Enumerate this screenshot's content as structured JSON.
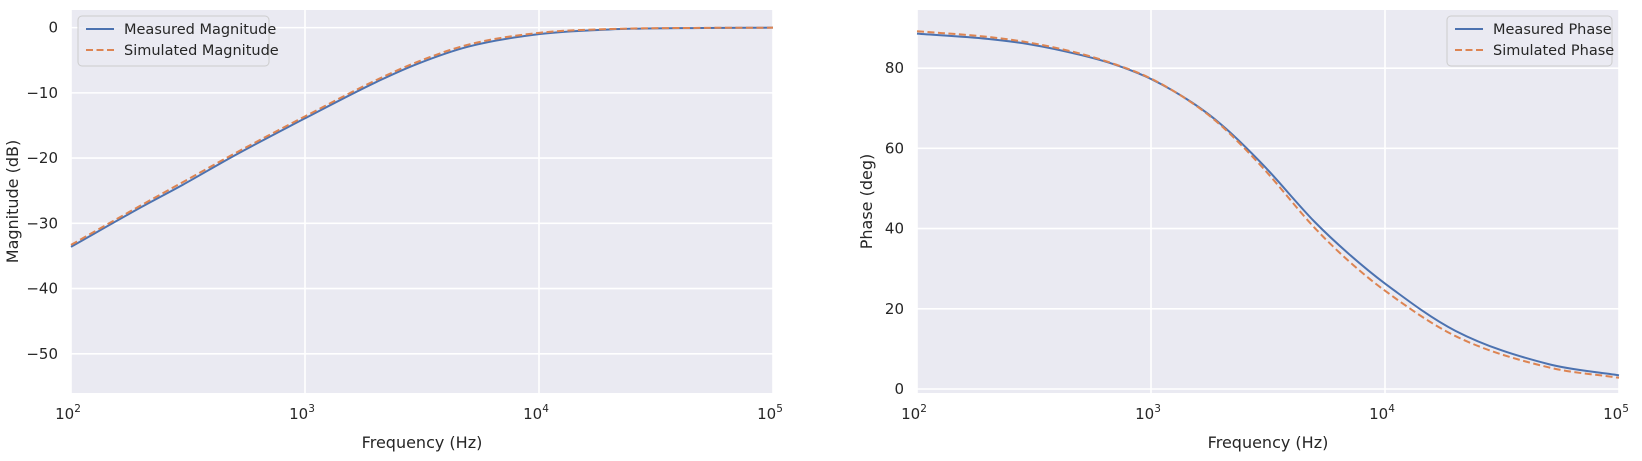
{
  "colors": {
    "axes_bg": "#eaeaf2",
    "grid": "#ffffff",
    "measured": "#4c72b0",
    "simulated": "#dd8452",
    "text": "#262626"
  },
  "chart_data": [
    {
      "type": "line",
      "xscale": "log",
      "xlim": [
        100,
        100000
      ],
      "ylim": [
        -56,
        2.7
      ],
      "xticks": [
        100,
        1000,
        10000,
        100000
      ],
      "xtick_labels": [
        {
          "base": "10",
          "exp": "2"
        },
        {
          "base": "10",
          "exp": "3"
        },
        {
          "base": "10",
          "exp": "4"
        },
        {
          "base": "10",
          "exp": "5"
        }
      ],
      "yticks": [
        0,
        -10,
        -20,
        -30,
        -40,
        -50
      ],
      "ytick_labels": [
        "0",
        "−10",
        "−20",
        "−30",
        "−40",
        "−50"
      ],
      "xlabel": "Frequency (Hz)",
      "ylabel": "Magnitude (dB)",
      "grid": true,
      "legend_placement": "upper-left",
      "x": [
        100,
        200,
        300,
        500,
        1000,
        2000,
        3000,
        5000,
        10000,
        20000,
        50000,
        100000
      ],
      "series": [
        {
          "name": "Measured Magnitude",
          "style": "solid",
          "values": [
            -33.6,
            -27.5,
            -24.1,
            -19.6,
            -13.9,
            -8.4,
            -5.6,
            -2.9,
            -1.0,
            -0.28,
            -0.05,
            -0.01
          ]
        },
        {
          "name": "Simulated Magnitude",
          "style": "dashed",
          "values": [
            -33.3,
            -27.2,
            -23.7,
            -19.3,
            -13.6,
            -8.1,
            -5.3,
            -2.6,
            -0.8,
            -0.22,
            -0.04,
            -0.01
          ]
        }
      ]
    },
    {
      "type": "line",
      "xscale": "log",
      "xlim": [
        100,
        100000
      ],
      "ylim": [
        -1,
        94.5
      ],
      "xticks": [
        100,
        1000,
        10000,
        100000
      ],
      "xtick_labels": [
        {
          "base": "10",
          "exp": "2"
        },
        {
          "base": "10",
          "exp": "3"
        },
        {
          "base": "10",
          "exp": "4"
        },
        {
          "base": "10",
          "exp": "5"
        }
      ],
      "yticks": [
        0,
        20,
        40,
        60,
        80
      ],
      "ytick_labels": [
        "0",
        "20",
        "40",
        "60",
        "80"
      ],
      "xlabel": "Frequency (Hz)",
      "ylabel": "Phase (deg)",
      "grid": true,
      "legend_placement": "upper-right",
      "x": [
        100,
        200,
        300,
        500,
        700,
        1000,
        1500,
        2000,
        3000,
        5000,
        7000,
        10000,
        20000,
        50000,
        100000
      ],
      "series": [
        {
          "name": "Measured Phase",
          "style": "solid",
          "values": [
            88.6,
            87.3,
            86.0,
            83.3,
            80.9,
            77.3,
            71.4,
            65.9,
            56.0,
            41.7,
            33.7,
            26.3,
            14.5,
            6.2,
            3.4
          ]
        },
        {
          "name": "Simulated Phase",
          "style": "dashed",
          "values": [
            89.2,
            87.8,
            86.4,
            83.6,
            81.0,
            77.4,
            71.3,
            65.6,
            55.2,
            40.2,
            31.9,
            24.5,
            13.2,
            5.4,
            2.8
          ]
        }
      ]
    }
  ]
}
